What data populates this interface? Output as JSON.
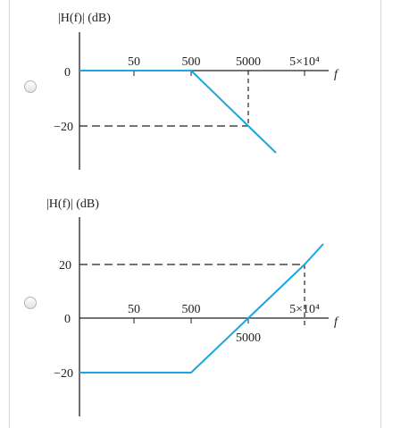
{
  "options": [
    {
      "ylabel": "|H(f)| (dB)",
      "xlabel": "f",
      "y_ticks": [
        "0",
        "−20"
      ],
      "x_ticks": [
        "50",
        "500",
        "5000",
        "5×10⁴"
      ],
      "curve_color": "#1aa6e0"
    },
    {
      "ylabel": "|H(f)| (dB)",
      "xlabel": "f",
      "y_ticks": [
        "20",
        "0",
        "−20"
      ],
      "x_ticks": [
        "50",
        "500",
        "5000",
        "5×10⁴"
      ],
      "curve_color": "#1aa6e0"
    }
  ],
  "chart_data": [
    {
      "type": "line",
      "ylabel": "|H(f)| (dB)",
      "xlabel": "f",
      "x_scale": "log",
      "x": [
        50,
        500,
        5000,
        50000
      ],
      "series": [
        {
          "points": [
            [
              10,
              0
            ],
            [
              500,
              0
            ],
            [
              5000,
              -20
            ],
            [
              12000,
              -29
            ]
          ]
        }
      ],
      "dashed_guides": [
        [
          5000,
          0
        ],
        [
          5000,
          -20
        ]
      ]
    },
    {
      "type": "line",
      "ylabel": "|H(f)| (dB)",
      "xlabel": "f",
      "x_scale": "log",
      "x": [
        50,
        500,
        5000,
        50000
      ],
      "series": [
        {
          "points": [
            [
              10,
              -20
            ],
            [
              500,
              -20
            ],
            [
              5000,
              0
            ],
            [
              50000,
              20
            ],
            [
              100000,
              27
            ]
          ]
        }
      ],
      "dashed_guides": [
        [
          50000,
          20
        ],
        [
          50000,
          0
        ]
      ]
    }
  ]
}
